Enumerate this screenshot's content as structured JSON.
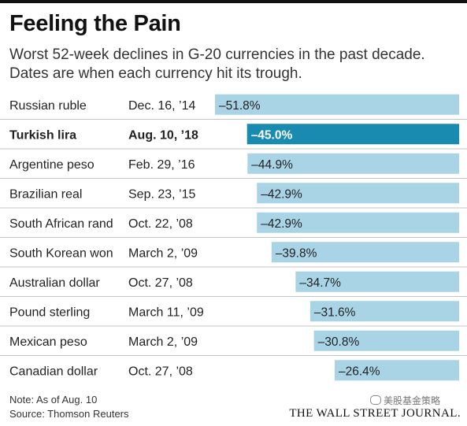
{
  "title": "Feeling the Pain",
  "subtitle": "Worst 52-week declines in G-20 currencies in the past decade. Dates are when each currency hit its trough.",
  "chart_data": {
    "type": "bar",
    "orientation": "horizontal",
    "title": "Feeling the Pain",
    "categories": [
      "Russian ruble",
      "Turkish lira",
      "Argentine peso",
      "Brazilian real",
      "South African rand",
      "South Korean won",
      "Australian dollar",
      "Pound sterling",
      "Mexican peso",
      "Canadian dollar"
    ],
    "dates": [
      "Dec. 16, ’14",
      "Aug. 10, ’18",
      "Feb. 29, ’16",
      "Sep. 23, ’15",
      "Oct. 22, ’08",
      "March 2, ’09",
      "Oct. 27, ’08",
      "March 11, ’09",
      "March 2, ’09",
      "Oct. 27, ’08"
    ],
    "series": [
      {
        "values": [
          -51.8,
          -45.0,
          -44.9,
          -42.9,
          -42.9,
          -39.8,
          -34.7,
          -31.6,
          -30.8,
          -26.4
        ],
        "labels": [
          "–51.8%",
          "–45.0%",
          "–44.9%",
          "–42.9%",
          "–42.9%",
          "–39.8%",
          "–34.7%",
          "–31.6%",
          "–30.8%",
          "–26.4%"
        ]
      }
    ],
    "highlight_index": 1,
    "xlim": [
      -51.8,
      0
    ],
    "grid": false,
    "legend": "none",
    "colors": {
      "bar": "#a9d4e6",
      "bar_highlight": "#1a8bb0",
      "label": "#222222",
      "label_highlight": "#ffffff",
      "divider": "#c4c4c4"
    }
  },
  "note": "Note: As of Aug. 10",
  "source": "Source: Thomson Reuters",
  "logo_text": "THE WALL STREET JOURNAL.",
  "watermark": "美股基金策略"
}
